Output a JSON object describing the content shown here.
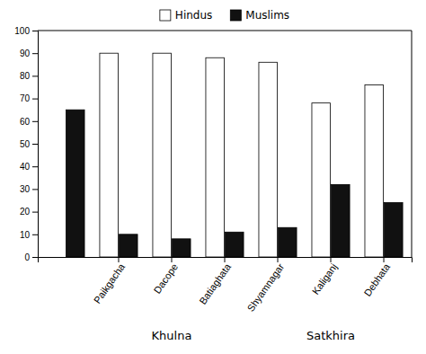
{
  "chart_data": {
    "type": "bar",
    "categories": [
      null,
      "Paikgacha",
      "Dacope",
      "Batiaghata",
      "Shyamnagar",
      "Kaliganj",
      "Debhata"
    ],
    "series": [
      {
        "name": "Hindus",
        "color": "#ffffff",
        "values": [
          null,
          90,
          90,
          88,
          86,
          68,
          76
        ]
      },
      {
        "name": "Muslims",
        "color": "#111111",
        "values": [
          65,
          10,
          8,
          11,
          13,
          32,
          24
        ]
      }
    ],
    "annotations": [
      {
        "text": "Khulna",
        "categories": [
          "Paikgacha",
          "Dacope",
          "Batiaghata"
        ]
      },
      {
        "text": "Satkhira",
        "categories": [
          "Shyamnagar",
          "Kaliganj",
          "Debhata"
        ]
      }
    ],
    "ylim": [
      0,
      100
    ],
    "yticks": [
      0,
      10,
      20,
      30,
      40,
      50,
      60,
      70,
      80,
      90,
      100
    ],
    "grid": false,
    "legend": "top"
  }
}
